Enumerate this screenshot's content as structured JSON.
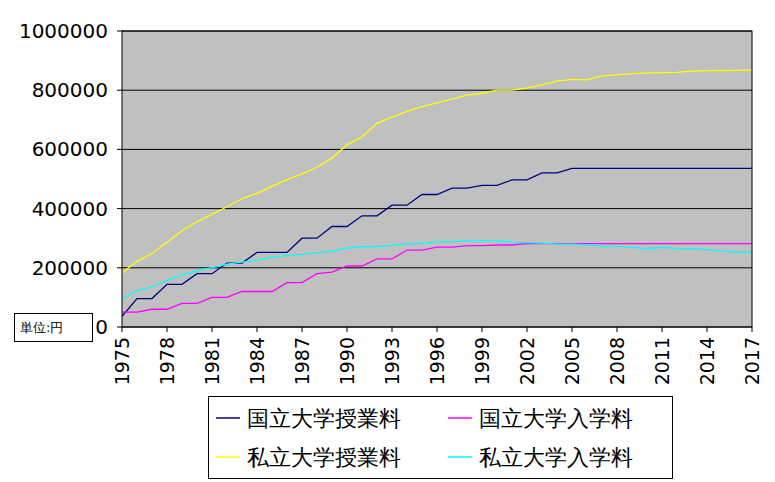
{
  "chart_data": {
    "type": "line",
    "ylabel": "単位:円",
    "x": [
      1975,
      1976,
      1977,
      1978,
      1979,
      1980,
      1981,
      1982,
      1983,
      1984,
      1985,
      1986,
      1987,
      1988,
      1989,
      1990,
      1991,
      1992,
      1993,
      1994,
      1995,
      1996,
      1997,
      1998,
      1999,
      2000,
      2001,
      2002,
      2003,
      2004,
      2005,
      2006,
      2007,
      2008,
      2009,
      2010,
      2011,
      2012,
      2013,
      2014,
      2015,
      2016,
      2017
    ],
    "xlim": [
      1975,
      2017
    ],
    "xticks": [
      1975,
      1978,
      1981,
      1984,
      1987,
      1990,
      1993,
      1996,
      1999,
      2002,
      2005,
      2008,
      2011,
      2014,
      2017
    ],
    "ylim": [
      0,
      1000000
    ],
    "yticks": [
      0,
      200000,
      400000,
      600000,
      800000,
      1000000
    ],
    "grid": true,
    "legend": "bottom",
    "series": [
      {
        "name": "国立大学授業料",
        "color": "#000080",
        "values": [
          36000,
          96000,
          96000,
          144000,
          144000,
          180000,
          180000,
          216000,
          216000,
          252000,
          252000,
          252000,
          300000,
          300000,
          339600,
          339600,
          375600,
          375600,
          411600,
          411600,
          447600,
          447600,
          469200,
          469200,
          478800,
          478800,
          496800,
          496800,
          520800,
          520800,
          535800,
          535800,
          535800,
          535800,
          535800,
          535800,
          535800,
          535800,
          535800,
          535800,
          535800,
          535800,
          535800
        ]
      },
      {
        "name": "国立大学入学料",
        "color": "#ff00ff",
        "values": [
          50000,
          50000,
          60000,
          60000,
          80000,
          80000,
          100000,
          100000,
          120000,
          120000,
          120000,
          150000,
          150000,
          180000,
          185400,
          206000,
          206000,
          230000,
          230000,
          260000,
          260000,
          270000,
          270000,
          275000,
          275000,
          277000,
          277000,
          282000,
          282000,
          282000,
          282000,
          282000,
          282000,
          282000,
          282000,
          282000,
          282000,
          282000,
          282000,
          282000,
          282000,
          282000,
          282000
        ]
      },
      {
        "name": "私立大学授業料",
        "color": "#ffff00",
        "values": [
          182677,
          221844,
          248066,
          286568,
          325198,
          355156,
          380253,
          406261,
          433200,
          451722,
          475325,
          497826,
          517395,
          539591,
          570584,
          615486,
          641608,
          688046,
          708847,
          728365,
          744733,
          757158,
          770024,
          783298,
          789659,
          799973,
          800318,
          807413,
          817952,
          830583,
          836297,
          834751,
          848178,
          851621,
          856000,
          857763,
          859367,
          860266,
          864384,
          866000,
          866500,
          867000,
          868000
        ]
      },
      {
        "name": "私立大学入学料",
        "color": "#00ffff",
        "values": [
          95584,
          121888,
          135205,
          157019,
          175999,
          190113,
          200611,
          212650,
          219016,
          225820,
          235769,
          241275,
          245263,
          251124,
          256600,
          266603,
          271151,
          271948,
          275824,
          280892,
          282574,
          287581,
          288471,
          290799,
          290815,
          290691,
          286528,
          284828,
          283306,
          279794,
          280033,
          277262,
          273564,
          273240,
          268924,
          264390,
          269481,
          264568,
          264417,
          261089,
          256069,
          253461,
          252030
        ]
      }
    ]
  }
}
